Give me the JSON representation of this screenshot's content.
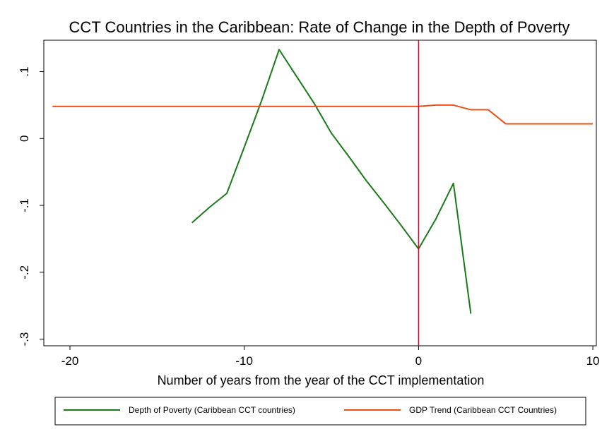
{
  "chart_data": {
    "type": "line",
    "title": "CCT Countries in the Caribbean: Rate of Change in the Depth of Poverty",
    "xlabel": "Number of years from the year of the CCT implementation",
    "ylabel": "",
    "xlim": [
      -21.5,
      10.2
    ],
    "ylim": [
      -0.31,
      0.147
    ],
    "xticks": [
      -20,
      -10,
      0,
      10
    ],
    "xtick_labels": [
      "-20",
      "-10",
      "0",
      "10"
    ],
    "yticks": [
      -0.3,
      -0.2,
      -0.1,
      0,
      0.1
    ],
    "ytick_labels": [
      "-.3",
      "-.2",
      "-.1",
      "0",
      ".1"
    ],
    "vline": {
      "x": 0,
      "color": "#c8102e"
    },
    "grid": false,
    "legend_position": "bottom",
    "series": [
      {
        "name": "Depth of Poverty (Caribbean CCT countries)",
        "color": "#1a7a1a",
        "x": [
          -13,
          -12,
          -11,
          -10,
          -9,
          -8,
          -7,
          -6,
          -5,
          -4,
          -3,
          -2,
          -1,
          0,
          1,
          2,
          3
        ],
        "y": [
          -0.126,
          -0.103,
          -0.082,
          -0.013,
          0.057,
          0.133,
          0.093,
          0.053,
          0.008,
          -0.027,
          -0.063,
          -0.096,
          -0.13,
          -0.165,
          -0.12,
          -0.067,
          -0.262
        ]
      },
      {
        "name": "GDP Trend (Caribbean CCT Countries)",
        "color": "#e8501a",
        "x": [
          -21,
          -20,
          -19,
          -18,
          -17,
          -16,
          -15,
          -14,
          -13,
          -12,
          -11,
          -10,
          -9,
          -8,
          -7,
          -6,
          -5,
          -4,
          -3,
          -2,
          -1,
          0,
          1,
          2,
          3,
          4,
          5,
          6,
          7,
          8,
          9,
          10
        ],
        "y": [
          0.048,
          0.048,
          0.048,
          0.048,
          0.048,
          0.048,
          0.048,
          0.048,
          0.048,
          0.048,
          0.048,
          0.048,
          0.048,
          0.048,
          0.048,
          0.048,
          0.048,
          0.048,
          0.048,
          0.048,
          0.048,
          0.048,
          0.05,
          0.05,
          0.043,
          0.043,
          0.022,
          0.022,
          0.022,
          0.022,
          0.022,
          0.022
        ]
      }
    ]
  }
}
